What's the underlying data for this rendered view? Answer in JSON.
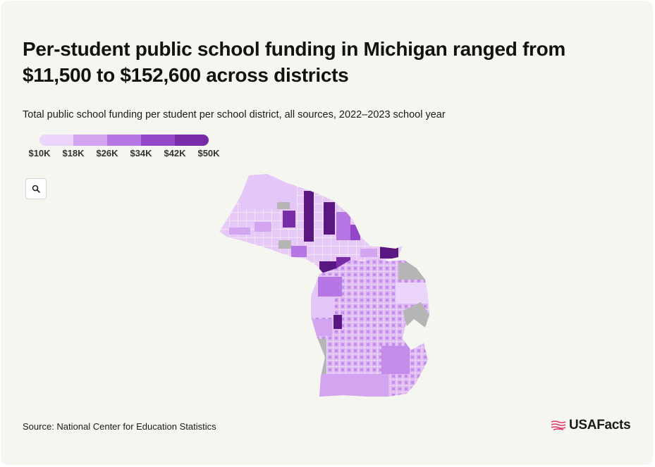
{
  "title": "Per-student public school funding in Michigan ranged from $11,500 to $152,600 across districts",
  "subtitle": "Total public school funding per student per school district, all sources, 2022–2023 school year",
  "legend": {
    "labels": [
      "$10K",
      "$18K",
      "$26K",
      "$34K",
      "$42K",
      "$50K"
    ],
    "colors": [
      "#ecd5fb",
      "#d3a5f0",
      "#b676e3",
      "#9448c9",
      "#7a2ca8",
      "#5a1781"
    ]
  },
  "zoom_button": {
    "icon": "search-icon"
  },
  "map_colors": {
    "no_data": "#b5b5b5",
    "background": "#f6f6f1"
  },
  "source": "Source: National Center for Education Statistics",
  "logo": {
    "text": "USAFacts",
    "accent": "#e0356b"
  }
}
